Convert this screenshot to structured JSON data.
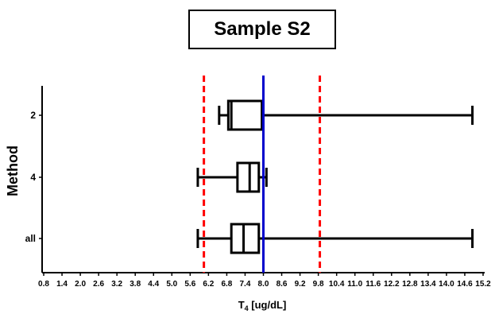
{
  "chart_data": {
    "type": "boxplot",
    "orientation": "horizontal",
    "title": "Sample S2",
    "xlabel_main": "T",
    "xlabel_sub": "4",
    "xlabel_rest": " [ug/dL]",
    "ylabel": "Method",
    "xlim": [
      0.8,
      15.2
    ],
    "xticks": [
      "0.8",
      "1.4",
      "2.0",
      "2.6",
      "3.2",
      "3.8",
      "4.4",
      "5.0",
      "5.6",
      "6.2",
      "6.8",
      "7.4",
      "8.0",
      "8.6",
      "9.2",
      "9.8",
      "10.4",
      "11.0",
      "11.6",
      "12.2",
      "12.8",
      "13.4",
      "14.0",
      "14.6",
      "15.2"
    ],
    "categories": [
      "2",
      "4",
      "all"
    ],
    "boxes": [
      {
        "label": "2",
        "min": 6.55,
        "q1": 6.85,
        "median": 6.95,
        "q3": 7.95,
        "max": 14.85
      },
      {
        "label": "4",
        "min": 5.85,
        "q1": 7.15,
        "median": 7.55,
        "q3": 7.85,
        "max": 8.1
      },
      {
        "label": "all",
        "min": 5.85,
        "q1": 6.95,
        "median": 7.35,
        "q3": 7.85,
        "max": 14.85
      }
    ],
    "reference_lines": [
      {
        "value": 6.05,
        "color": "#ff0000",
        "style": "dashed"
      },
      {
        "value": 8.0,
        "color": "#0000cc",
        "style": "solid"
      },
      {
        "value": 9.85,
        "color": "#ff0000",
        "style": "dashed"
      }
    ],
    "grid": false,
    "legend": "none"
  }
}
